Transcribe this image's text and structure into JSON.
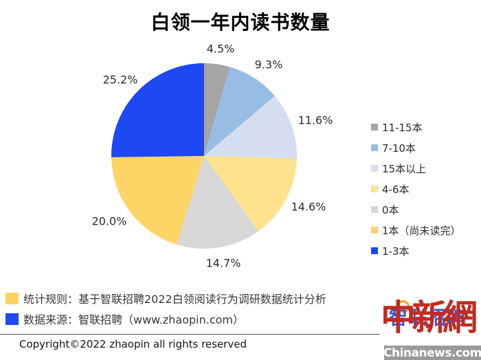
{
  "page": {
    "background": "#ffffff"
  },
  "chart_data": {
    "type": "pie",
    "title": "白领一年内读书数量",
    "start_angle_deg": 0,
    "direction": "clockwise",
    "legend_position": "right",
    "grid": false,
    "slices": [
      {
        "label": "11-15本",
        "value": 4.5,
        "display": "4.5%",
        "color": "#a6a6a6"
      },
      {
        "label": "7-10本",
        "value": 9.3,
        "display": "9.3%",
        "color": "#97bde4"
      },
      {
        "label": "15本以上",
        "value": 11.6,
        "display": "11.6%",
        "color": "#d4def0"
      },
      {
        "label": "4-6本",
        "value": 14.6,
        "display": "14.6%",
        "color": "#ffe28e"
      },
      {
        "label": "0本",
        "value": 14.7,
        "display": "14.7%",
        "color": "#d7d7d7"
      },
      {
        "label": "1本（尚未读完）",
        "value": 20.0,
        "display": "20.0%",
        "color": "#fdd566"
      },
      {
        "label": "1-3本",
        "value": 25.2,
        "display": "25.2%",
        "color": "#1e48f2"
      }
    ]
  },
  "footnotes": [
    {
      "marker_color": "#fbd263",
      "text": "统计规则：基于智联招聘2022白领阅读行为调研数据统计分析"
    },
    {
      "marker_color": "#2049f0",
      "text": "数据来源：智联招聘（www.zhaopin.com）"
    }
  ],
  "footer": {
    "copyright": "Copyright©2022 zhaopin all rights reserved"
  },
  "watermarks": {
    "zhaopin_logo": "智联招聘",
    "zhaopin_logo_color": "#3558cf",
    "zhaopin_arc_color": "#f2a12d",
    "chinanews_seal": "中新網",
    "chinanews_seal_color": "#c42a1f",
    "chinanews_domain": "Chinanews.com",
    "chinanews_bar_color": "#9a9a9a"
  }
}
